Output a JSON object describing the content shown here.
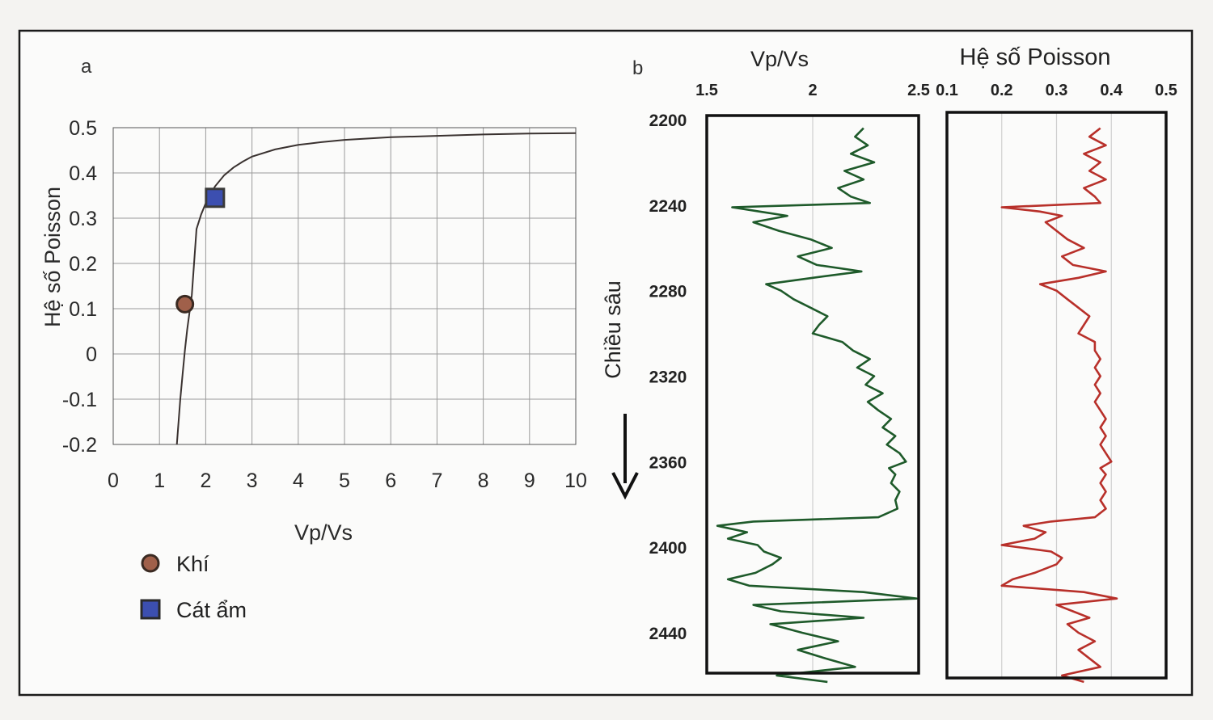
{
  "colors": {
    "frame": "#1a1a1a",
    "grid": "#9a9a9a",
    "curve": "#3a3230",
    "gas_marker": "#a0604a",
    "wet_sand_marker": "#3c4fb0",
    "vpvs_log": "#1e5a2a",
    "poisson_log": "#b8302a",
    "track_grid": "#cfcfcf"
  },
  "chart_data": [
    {
      "panel_label": "a",
      "type": "line",
      "xlabel": "Vp/Vs",
      "ylabel": "Hệ số Poisson",
      "xlim": [
        0,
        10
      ],
      "ylim": [
        -0.2,
        0.5
      ],
      "xticks": [
        0,
        1,
        2,
        3,
        4,
        5,
        6,
        7,
        8,
        9,
        10
      ],
      "yticks": [
        -0.2,
        -0.1,
        0,
        0.1,
        0.2,
        0.3,
        0.4,
        0.5
      ],
      "ytick_labels": [
        "-0.2",
        "-0.1",
        "0",
        "0.1",
        "0.2",
        "0.3",
        "0.4",
        "0.5"
      ],
      "grid": true,
      "series": [
        {
          "curve": "poisson_from_vpvs",
          "x": [
            1.375,
            1.4,
            1.45,
            1.5,
            1.55,
            1.6,
            1.7,
            1.8,
            1.9,
            2.0,
            2.2,
            2.4,
            2.6,
            2.8,
            3.0,
            3.5,
            4.0,
            4.5,
            5.0,
            6.0,
            7.0,
            8.0,
            9.0,
            10.0
          ],
          "y": [
            -0.2,
            -0.167,
            -0.101,
            -0.045,
            0.009,
            0.054,
            0.13,
            0.276,
            0.308,
            0.333,
            0.37,
            0.395,
            0.412,
            0.425,
            0.436,
            0.452,
            0.462,
            0.468,
            0.473,
            0.479,
            0.482,
            0.485,
            0.487,
            0.488
          ]
        }
      ],
      "points": [
        {
          "name": "Khí",
          "x": 1.55,
          "y": 0.11,
          "marker": "circle"
        },
        {
          "name": "Cát ẩm",
          "x": 2.2,
          "y": 0.345,
          "marker": "square"
        }
      ],
      "legend": [
        {
          "label": "Khí",
          "marker": "circle"
        },
        {
          "label": "Cát ẩm",
          "marker": "square"
        }
      ],
      "legend_position": "bottom-left"
    },
    {
      "panel_label": "b",
      "type": "line",
      "shared_ylabel": "Chiều sâu",
      "ylim": [
        2200,
        2465
      ],
      "yticks": [
        2200,
        2240,
        2280,
        2320,
        2360,
        2400,
        2440
      ],
      "y_inverted": true,
      "tracks": [
        {
          "title": "Vp/Vs",
          "xlim": [
            1.5,
            2.5
          ],
          "xticks": [
            1.5,
            2,
            2.5
          ],
          "xtick_labels": [
            "1.5",
            "2",
            "2.5"
          ],
          "depth": [
            2204,
            2208,
            2212,
            2216,
            2220,
            2224,
            2228,
            2232,
            2236,
            2239,
            2241,
            2243,
            2245,
            2248,
            2252,
            2256,
            2260,
            2264,
            2268,
            2271,
            2274,
            2277,
            2280,
            2284,
            2288,
            2292,
            2296,
            2300,
            2304,
            2308,
            2312,
            2316,
            2320,
            2324,
            2328,
            2332,
            2336,
            2340,
            2344,
            2348,
            2352,
            2356,
            2360,
            2363,
            2366,
            2370,
            2374,
            2378,
            2382,
            2386,
            2388,
            2390,
            2393,
            2396,
            2399,
            2402,
            2405,
            2408,
            2412,
            2415,
            2418,
            2421,
            2424,
            2427,
            2430,
            2433,
            2436,
            2440,
            2444,
            2448,
            2452,
            2456,
            2460,
            2463
          ],
          "values": [
            2.24,
            2.2,
            2.26,
            2.18,
            2.29,
            2.15,
            2.24,
            2.12,
            2.18,
            2.27,
            1.62,
            1.75,
            1.88,
            1.72,
            1.84,
            1.99,
            2.09,
            1.93,
            2.02,
            2.23,
            2.0,
            1.78,
            1.85,
            1.91,
            1.99,
            2.07,
            2.03,
            2.0,
            2.14,
            2.19,
            2.27,
            2.21,
            2.29,
            2.25,
            2.33,
            2.26,
            2.31,
            2.37,
            2.33,
            2.39,
            2.35,
            2.41,
            2.44,
            2.36,
            2.39,
            2.37,
            2.41,
            2.39,
            2.4,
            2.31,
            1.72,
            1.55,
            1.69,
            1.6,
            1.74,
            1.77,
            1.85,
            1.81,
            1.73,
            1.6,
            1.7,
            2.24,
            2.49,
            1.72,
            1.85,
            2.24,
            1.8,
            1.95,
            2.12,
            1.93,
            2.06,
            2.2,
            1.83,
            2.07
          ]
        },
        {
          "title": "Hệ số Poisson",
          "xlim": [
            0.1,
            0.5
          ],
          "xticks": [
            0.1,
            0.2,
            0.3,
            0.4,
            0.5
          ],
          "xtick_labels": [
            "0.1",
            "0.2",
            "0.3",
            "0.4",
            "0.5"
          ],
          "depth": [
            2204,
            2208,
            2212,
            2216,
            2220,
            2224,
            2228,
            2232,
            2236,
            2239,
            2241,
            2243,
            2245,
            2248,
            2252,
            2256,
            2260,
            2264,
            2268,
            2271,
            2274,
            2277,
            2280,
            2284,
            2288,
            2292,
            2296,
            2300,
            2304,
            2308,
            2312,
            2316,
            2320,
            2324,
            2328,
            2332,
            2336,
            2340,
            2344,
            2348,
            2352,
            2356,
            2360,
            2363,
            2366,
            2370,
            2374,
            2378,
            2382,
            2386,
            2388,
            2390,
            2393,
            2396,
            2399,
            2402,
            2405,
            2408,
            2412,
            2415,
            2418,
            2421,
            2424,
            2427,
            2430,
            2433,
            2436,
            2440,
            2444,
            2448,
            2452,
            2456,
            2460,
            2463
          ],
          "values": [
            0.38,
            0.36,
            0.39,
            0.35,
            0.38,
            0.36,
            0.39,
            0.35,
            0.37,
            0.38,
            0.2,
            0.27,
            0.31,
            0.28,
            0.3,
            0.32,
            0.35,
            0.31,
            0.33,
            0.39,
            0.34,
            0.27,
            0.3,
            0.32,
            0.34,
            0.36,
            0.35,
            0.34,
            0.37,
            0.37,
            0.38,
            0.37,
            0.38,
            0.37,
            0.38,
            0.37,
            0.38,
            0.39,
            0.38,
            0.39,
            0.38,
            0.39,
            0.4,
            0.38,
            0.39,
            0.38,
            0.39,
            0.38,
            0.39,
            0.37,
            0.29,
            0.24,
            0.28,
            0.26,
            0.2,
            0.29,
            0.31,
            0.3,
            0.26,
            0.22,
            0.2,
            0.35,
            0.41,
            0.3,
            0.33,
            0.36,
            0.32,
            0.34,
            0.37,
            0.34,
            0.36,
            0.38,
            0.31,
            0.35
          ]
        }
      ]
    }
  ]
}
